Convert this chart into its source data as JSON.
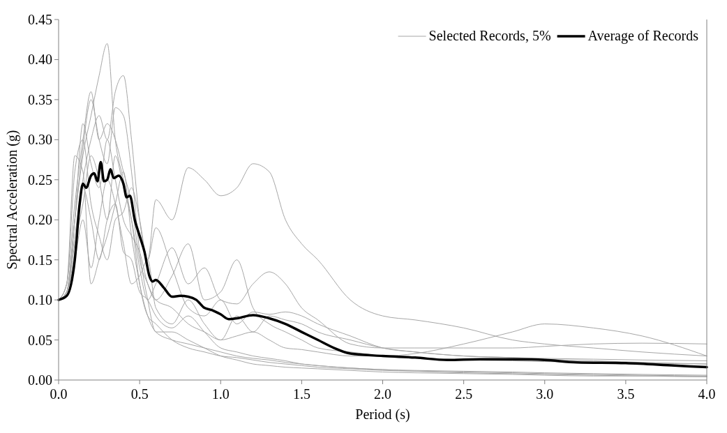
{
  "chart_data": {
    "type": "line",
    "xlabel": "Period (s)",
    "ylabel": "Spectral Acceleration (g)",
    "x": [
      0,
      0.05,
      0.1,
      0.15,
      0.2,
      0.25,
      0.3,
      0.35,
      0.4,
      0.45,
      0.5,
      0.55,
      0.6,
      0.7,
      0.8,
      0.9,
      1.0,
      1.1,
      1.2,
      1.3,
      1.4,
      1.5,
      1.6,
      1.8,
      2.0,
      2.2,
      2.5,
      2.8,
      3.0,
      3.3,
      3.6,
      4.0
    ],
    "series": [
      {
        "name": "Selected Records, 5%",
        "color": "#a6a6a6",
        "values": [
          0.1,
          0.11,
          0.2,
          0.28,
          0.33,
          0.38,
          0.42,
          0.3,
          0.25,
          0.2,
          0.12,
          0.08,
          0.07,
          0.05,
          0.04,
          0.035,
          0.03,
          0.028,
          0.025,
          0.022,
          0.02,
          0.018,
          0.016,
          0.014,
          0.012,
          0.011,
          0.01,
          0.009,
          0.008,
          0.007,
          0.006,
          0.005
        ]
      },
      {
        "color": "#a6a6a6",
        "values": [
          0.1,
          0.11,
          0.18,
          0.25,
          0.3,
          0.33,
          0.3,
          0.36,
          0.38,
          0.3,
          0.2,
          0.15,
          0.225,
          0.2,
          0.265,
          0.25,
          0.23,
          0.24,
          0.27,
          0.26,
          0.2,
          0.17,
          0.15,
          0.1,
          0.08,
          0.075,
          0.065,
          0.05,
          0.045,
          0.04,
          0.035,
          0.03
        ]
      },
      {
        "color": "#a6a6a6",
        "values": [
          0.1,
          0.12,
          0.22,
          0.3,
          0.36,
          0.3,
          0.32,
          0.3,
          0.26,
          0.22,
          0.15,
          0.12,
          0.1,
          0.09,
          0.07,
          0.06,
          0.05,
          0.055,
          0.06,
          0.05,
          0.04,
          0.038,
          0.035,
          0.03,
          0.03,
          0.033,
          0.045,
          0.06,
          0.07,
          0.065,
          0.055,
          0.03
        ]
      },
      {
        "color": "#a6a6a6",
        "values": [
          0.1,
          0.11,
          0.17,
          0.22,
          0.28,
          0.25,
          0.2,
          0.28,
          0.24,
          0.2,
          0.14,
          0.1,
          0.12,
          0.165,
          0.12,
          0.14,
          0.1,
          0.095,
          0.12,
          0.135,
          0.12,
          0.09,
          0.075,
          0.045,
          0.04,
          0.04,
          0.04,
          0.04,
          0.042,
          0.045,
          0.046,
          0.045
        ]
      },
      {
        "color": "#a6a6a6",
        "values": [
          0.1,
          0.12,
          0.26,
          0.3,
          0.22,
          0.18,
          0.15,
          0.2,
          0.21,
          0.24,
          0.2,
          0.15,
          0.19,
          0.14,
          0.09,
          0.08,
          0.1,
          0.07,
          0.085,
          0.082,
          0.085,
          0.08,
          0.07,
          0.055,
          0.04,
          0.035,
          0.03,
          0.028,
          0.026,
          0.024,
          0.022,
          0.02
        ]
      },
      {
        "color": "#a6a6a6",
        "values": [
          0.1,
          0.11,
          0.2,
          0.32,
          0.27,
          0.24,
          0.3,
          0.25,
          0.2,
          0.18,
          0.16,
          0.12,
          0.1,
          0.13,
          0.17,
          0.1,
          0.11,
          0.15,
          0.09,
          0.07,
          0.06,
          0.05,
          0.04,
          0.035,
          0.03,
          0.028,
          0.025,
          0.024,
          0.023,
          0.022,
          0.021,
          0.02
        ]
      },
      {
        "color": "#a6a6a6",
        "values": [
          0.1,
          0.11,
          0.15,
          0.2,
          0.14,
          0.2,
          0.25,
          0.22,
          0.17,
          0.12,
          0.13,
          0.15,
          0.09,
          0.07,
          0.1,
          0.07,
          0.05,
          0.08,
          0.06,
          0.08,
          0.075,
          0.07,
          0.06,
          0.05,
          0.04,
          0.035,
          0.03,
          0.028,
          0.027,
          0.026,
          0.025,
          0.024
        ]
      },
      {
        "color": "#a6a6a6",
        "values": [
          0.1,
          0.12,
          0.28,
          0.26,
          0.12,
          0.15,
          0.18,
          0.22,
          0.26,
          0.18,
          0.12,
          0.08,
          0.06,
          0.05,
          0.045,
          0.04,
          0.035,
          0.03,
          0.027,
          0.025,
          0.022,
          0.02,
          0.018,
          0.015,
          0.013,
          0.012,
          0.011,
          0.01,
          0.009,
          0.008,
          0.007,
          0.006
        ]
      },
      {
        "color": "#a6a6a6",
        "values": [
          0.1,
          0.11,
          0.16,
          0.24,
          0.2,
          0.15,
          0.2,
          0.22,
          0.16,
          0.15,
          0.11,
          0.1,
          0.08,
          0.065,
          0.08,
          0.06,
          0.04,
          0.035,
          0.03,
          0.027,
          0.024,
          0.02,
          0.018,
          0.015,
          0.013,
          0.011,
          0.009,
          0.008,
          0.007,
          0.006,
          0.005,
          0.004
        ]
      },
      {
        "color": "#a6a6a6",
        "values": [
          0.1,
          0.11,
          0.2,
          0.29,
          0.35,
          0.3,
          0.27,
          0.34,
          0.33,
          0.26,
          0.16,
          0.1,
          0.06,
          0.06,
          0.05,
          0.04,
          0.03,
          0.025,
          0.02,
          0.018,
          0.016,
          0.015,
          0.014,
          0.012,
          0.01,
          0.009,
          0.008,
          0.007,
          0.006,
          0.005,
          0.005,
          0.004
        ]
      },
      {
        "name": "Average of Records",
        "color": "#000000",
        "x": [
          0,
          0.05,
          0.1,
          0.13,
          0.15,
          0.17,
          0.2,
          0.22,
          0.24,
          0.26,
          0.28,
          0.3,
          0.32,
          0.34,
          0.37,
          0.4,
          0.42,
          0.44,
          0.47,
          0.5,
          0.53,
          0.56,
          0.58,
          0.6,
          0.65,
          0.7,
          0.75,
          0.8,
          0.85,
          0.9,
          0.95,
          1.0,
          1.05,
          1.1,
          1.2,
          1.3,
          1.4,
          1.5,
          1.6,
          1.7,
          1.8,
          2.0,
          2.2,
          2.4,
          2.6,
          2.8,
          3.0,
          3.2,
          3.5,
          3.8,
          4.0
        ],
        "values": [
          0.1,
          0.105,
          0.15,
          0.22,
          0.245,
          0.24,
          0.255,
          0.258,
          0.248,
          0.272,
          0.248,
          0.25,
          0.263,
          0.252,
          0.255,
          0.245,
          0.228,
          0.23,
          0.2,
          0.18,
          0.16,
          0.13,
          0.123,
          0.125,
          0.115,
          0.104,
          0.105,
          0.104,
          0.1,
          0.09,
          0.087,
          0.082,
          0.076,
          0.077,
          0.081,
          0.077,
          0.07,
          0.06,
          0.05,
          0.04,
          0.033,
          0.03,
          0.028,
          0.025,
          0.026,
          0.026,
          0.025,
          0.022,
          0.021,
          0.018,
          0.016
        ]
      }
    ],
    "xlim": [
      0,
      4
    ],
    "xticks": [
      {
        "value": 0,
        "label": "0.0"
      },
      {
        "value": 0.5,
        "label": "0.5"
      },
      {
        "value": 1,
        "label": "1.0"
      },
      {
        "value": 1.5,
        "label": "1.5"
      },
      {
        "value": 2,
        "label": "2.0"
      },
      {
        "value": 2.5,
        "label": "2.5"
      },
      {
        "value": 3,
        "label": "3.0"
      },
      {
        "value": 3.5,
        "label": "3.5"
      },
      {
        "value": 4,
        "label": "4.0"
      }
    ],
    "ylim": [
      0,
      0.45
    ],
    "yticks": [
      {
        "value": 0,
        "label": "0.00"
      },
      {
        "value": 0.05,
        "label": "0.05"
      },
      {
        "value": 0.1,
        "label": "0.10"
      },
      {
        "value": 0.15,
        "label": "0.15"
      },
      {
        "value": 0.2,
        "label": "0.20"
      },
      {
        "value": 0.25,
        "label": "0.25"
      },
      {
        "value": 0.3,
        "label": "0.30"
      },
      {
        "value": 0.35,
        "label": "0.35"
      },
      {
        "value": 0.4,
        "label": "0.40"
      },
      {
        "value": 0.45,
        "label": "0.45"
      }
    ],
    "legend": "top right",
    "grid": false,
    "marker": "none"
  }
}
